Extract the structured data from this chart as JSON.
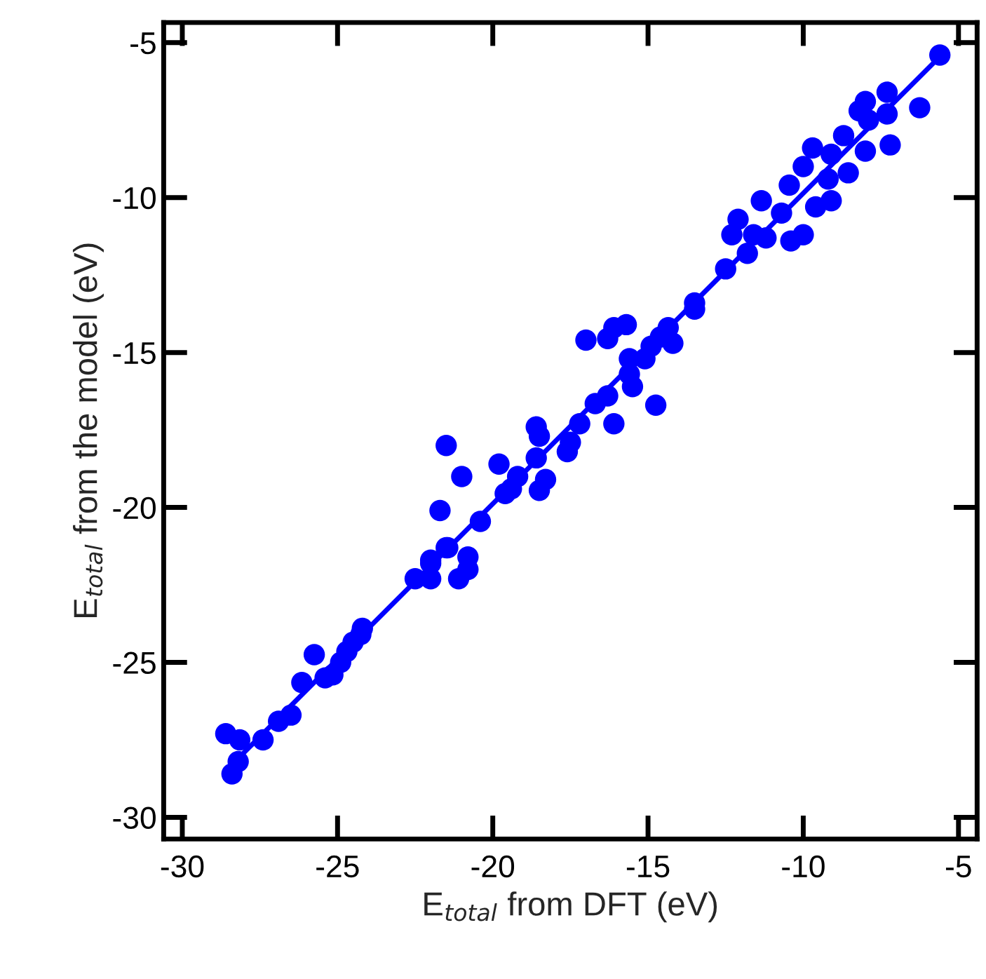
{
  "chart_data": {
    "type": "scatter",
    "xlabel": "E$_{total}$ from DFT (eV)",
    "ylabel": "E$_{total}$ from the model (eV)",
    "xlim": [
      -30.6,
      -4.4
    ],
    "ylim": [
      -30.7,
      -4.35
    ],
    "xticks": [
      -30,
      -25,
      -20,
      -15,
      -10,
      -5
    ],
    "yticks": [
      -30,
      -25,
      -20,
      -15,
      -10,
      -5
    ],
    "grid": false,
    "series": [
      {
        "color": "#0000ff",
        "marker": "circle",
        "x": [
          -5.6,
          -6.25,
          -7.2,
          -7.3,
          -8.0,
          -8.2,
          -7.3,
          -7.9,
          -8.0,
          -8.55,
          -8.7,
          -9.7,
          -10.0,
          -9.1,
          -9.2,
          -9.1,
          -9.6,
          -10.45,
          -11.35,
          -10.7,
          -10.0,
          -10.4,
          -12.1,
          -12.3,
          -11.6,
          -11.8,
          -12.5,
          -11.2,
          -13.5,
          -24.2,
          -20.4,
          -21.7,
          -21.5,
          -21.0,
          -19.8,
          -22.0,
          -21.45,
          -20.8,
          -21.1,
          -20.8,
          -19.4,
          -19.6,
          -19.2,
          -18.5,
          -18.3,
          -18.6,
          -18.6,
          -18.5,
          -17.6,
          -17.5,
          -17.2,
          -16.7,
          -16.3,
          -16.1,
          -17.0,
          -16.3,
          -16.1,
          -15.7,
          -15.6,
          -15.6,
          -15.5,
          -14.75,
          -15.1,
          -14.9,
          -14.6,
          -14.35,
          -14.2,
          -13.5,
          -28.6,
          -28.15,
          -28.4,
          -28.2,
          -27.4,
          -26.9,
          -26.5,
          -26.15,
          -25.75,
          -25.4,
          -25.15,
          -24.9,
          -24.7,
          -24.5,
          -24.25,
          -22.5,
          -22.0,
          -22.0,
          -21.5
        ],
        "values": [
          -5.4,
          -7.1,
          -8.3,
          -6.6,
          -6.9,
          -7.2,
          -7.3,
          -7.5,
          -8.5,
          -9.2,
          -8.0,
          -8.4,
          -9.0,
          -8.6,
          -9.4,
          -10.1,
          -10.3,
          -9.6,
          -10.1,
          -10.5,
          -11.2,
          -11.4,
          -10.7,
          -11.2,
          -11.2,
          -11.8,
          -12.3,
          -11.3,
          -13.4,
          -23.9,
          -20.45,
          -20.1,
          -18.0,
          -19.0,
          -18.6,
          -21.7,
          -21.3,
          -21.6,
          -22.3,
          -22.0,
          -19.4,
          -19.55,
          -19.0,
          -19.45,
          -19.1,
          -18.4,
          -17.4,
          -17.7,
          -18.2,
          -17.9,
          -17.3,
          -16.65,
          -16.4,
          -17.3,
          -14.6,
          -14.55,
          -14.2,
          -14.1,
          -15.2,
          -15.7,
          -16.1,
          -16.7,
          -15.2,
          -14.8,
          -14.5,
          -14.2,
          -14.7,
          -13.6,
          -27.3,
          -27.5,
          -28.6,
          -28.2,
          -27.5,
          -26.9,
          -26.7,
          -25.65,
          -24.75,
          -25.5,
          -25.4,
          -25.0,
          -24.65,
          -24.35,
          -24.1,
          -22.3,
          -22.3,
          -21.8,
          -21.3
        ]
      },
      {
        "type": "line",
        "color": "#0000ff",
        "x": [
          -28.4,
          -5.6
        ],
        "values": [
          -28.3,
          -5.45
        ]
      }
    ]
  }
}
